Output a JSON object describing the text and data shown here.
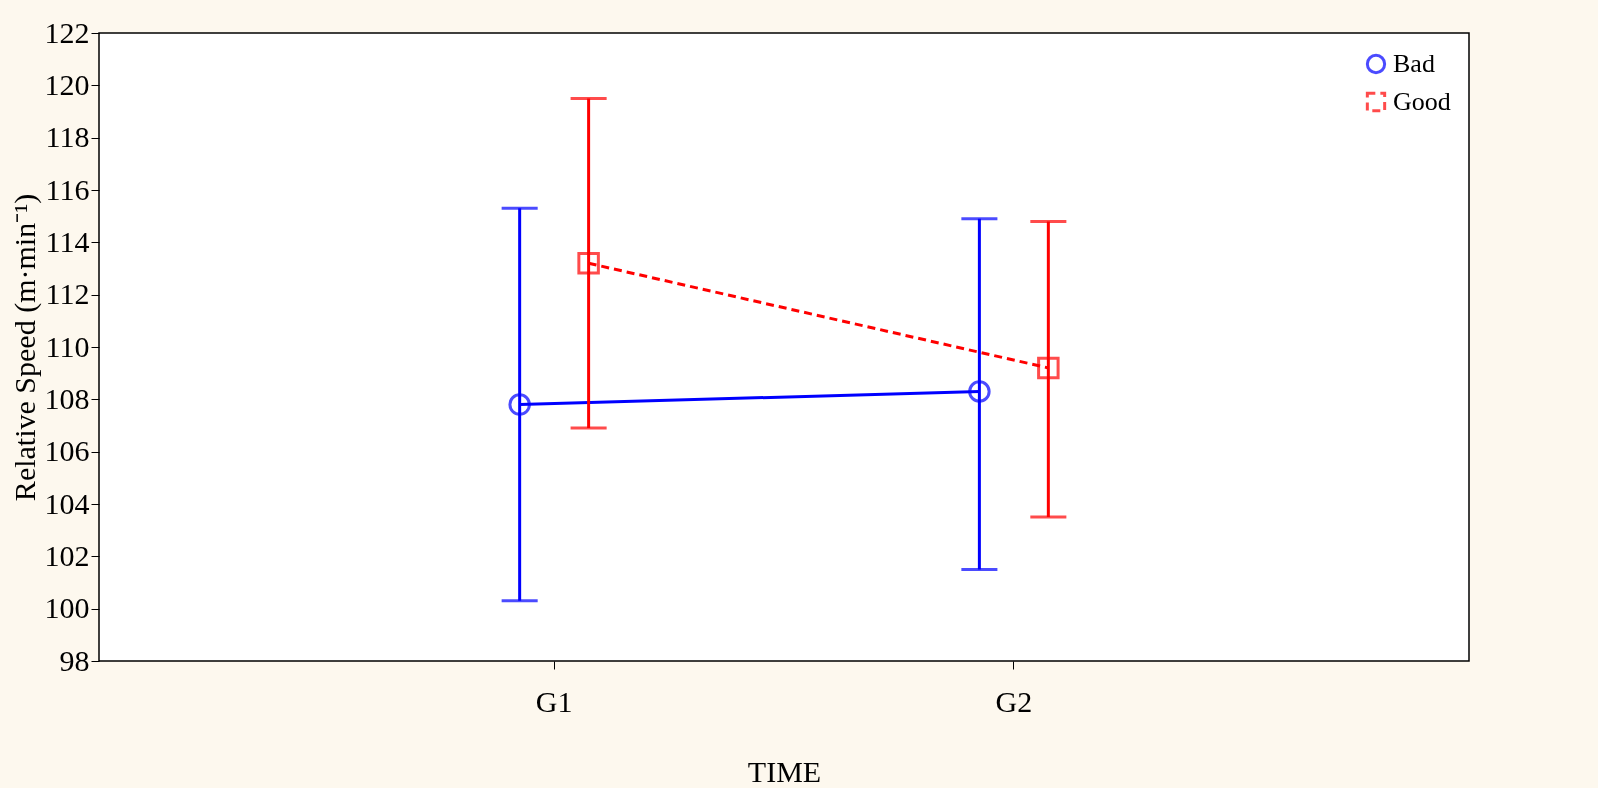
{
  "chart_data": {
    "type": "line",
    "xlabel": "TIME",
    "ylabel": "Relative Speed (m·min⁻¹)",
    "categories": [
      "G1",
      "G2"
    ],
    "ylim": [
      98,
      122
    ],
    "yticks": [
      98,
      100,
      102,
      104,
      106,
      108,
      110,
      112,
      114,
      116,
      118,
      120,
      122
    ],
    "grid": false,
    "legend": "top right",
    "series": [
      {
        "name": "Bad",
        "color": "#0000ff",
        "marker": "circle",
        "line_style": "solid",
        "values": [
          107.8,
          108.3
        ],
        "errors": [
          [
            100.3,
            115.3
          ],
          [
            101.5,
            114.9
          ]
        ]
      },
      {
        "name": "Good",
        "color": "#ff0000",
        "marker": "square",
        "line_style": "dashed",
        "values": [
          113.2,
          109.2
        ],
        "errors": [
          [
            106.9,
            119.5
          ],
          [
            103.5,
            114.8
          ]
        ]
      }
    ]
  }
}
